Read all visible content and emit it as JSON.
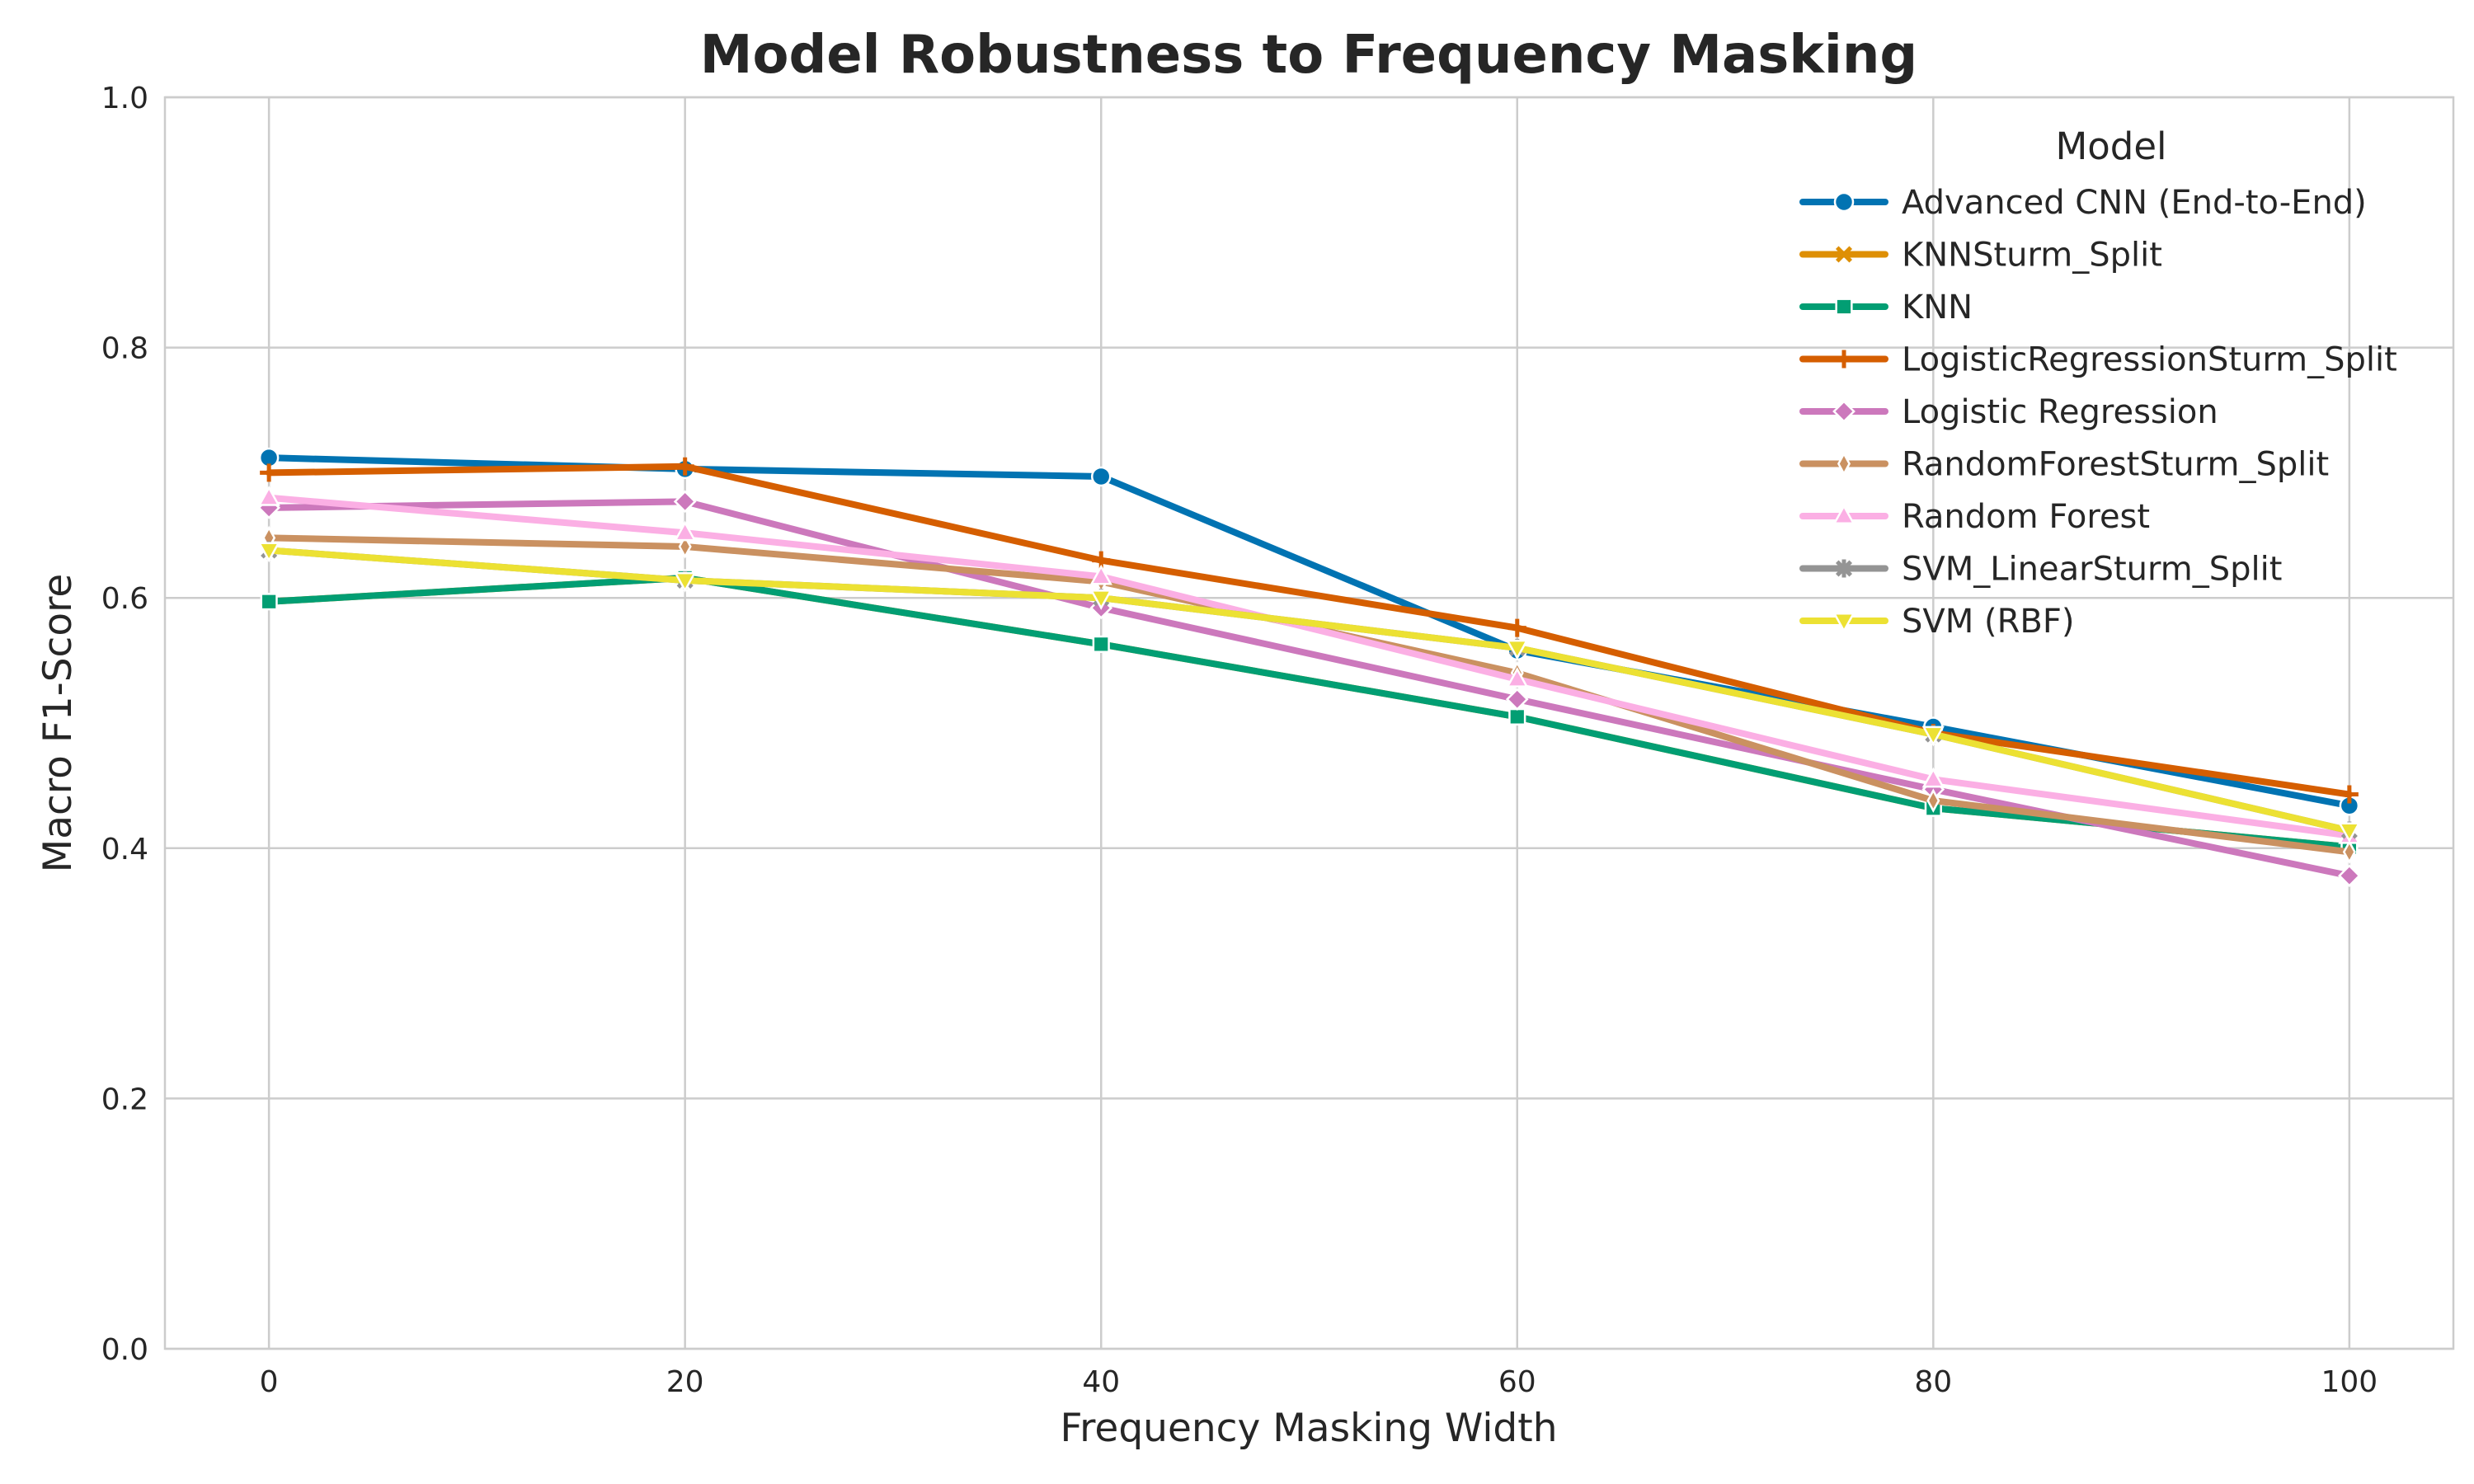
{
  "chart_data": {
    "type": "line",
    "title": "Model Robustness to Frequency Masking",
    "xlabel": "Frequency Masking Width",
    "ylabel": "Macro F1-Score",
    "x": [
      0,
      20,
      40,
      60,
      80,
      100
    ],
    "xticks": [
      "0",
      "20",
      "40",
      "60",
      "80",
      "100"
    ],
    "xlim": [
      -5,
      105
    ],
    "yticks": [
      "0.0",
      "0.2",
      "0.4",
      "0.6",
      "0.8",
      "1.0"
    ],
    "ylim": [
      0,
      1
    ],
    "grid": true,
    "legend": {
      "title": "Model",
      "placement": "top-right"
    },
    "series": [
      {
        "name": "Advanced CNN (End-to-End)",
        "color": "#0173b2",
        "marker": "circle",
        "values": [
          0.712,
          0.703,
          0.697,
          0.558,
          0.497,
          0.434
        ]
      },
      {
        "name": "KNNSturm_Split",
        "color": "#de8f05",
        "marker": "x",
        "values": [
          0.597,
          0.616,
          0.563,
          0.505,
          0.432,
          0.401
        ]
      },
      {
        "name": "KNN",
        "color": "#029e73",
        "marker": "square",
        "values": [
          0.597,
          0.616,
          0.563,
          0.505,
          0.432,
          0.401
        ]
      },
      {
        "name": "LogisticRegressionSturm_Split",
        "color": "#d55e00",
        "marker": "plus",
        "values": [
          0.7,
          0.705,
          0.63,
          0.576,
          0.492,
          0.443
        ]
      },
      {
        "name": "Logistic Regression",
        "color": "#cc78bc",
        "marker": "diamond",
        "values": [
          0.672,
          0.677,
          0.592,
          0.519,
          0.447,
          0.378
        ]
      },
      {
        "name": "RandomForestSturm_Split",
        "color": "#ca9161",
        "marker": "thin-diamond",
        "values": [
          0.648,
          0.641,
          0.613,
          0.54,
          0.438,
          0.397
        ]
      },
      {
        "name": "Random Forest",
        "color": "#fbafe4",
        "marker": "triangle-up",
        "values": [
          0.68,
          0.652,
          0.617,
          0.535,
          0.455,
          0.41
        ]
      },
      {
        "name": "SVM_LinearSturm_Split",
        "color": "#949494",
        "marker": "star",
        "values": [
          0.638,
          0.614,
          0.6,
          0.56,
          0.491,
          0.414
        ]
      },
      {
        "name": "SVM (RBF)",
        "color": "#ece133",
        "marker": "triangle-down",
        "values": [
          0.638,
          0.614,
          0.6,
          0.56,
          0.491,
          0.414
        ]
      }
    ]
  }
}
